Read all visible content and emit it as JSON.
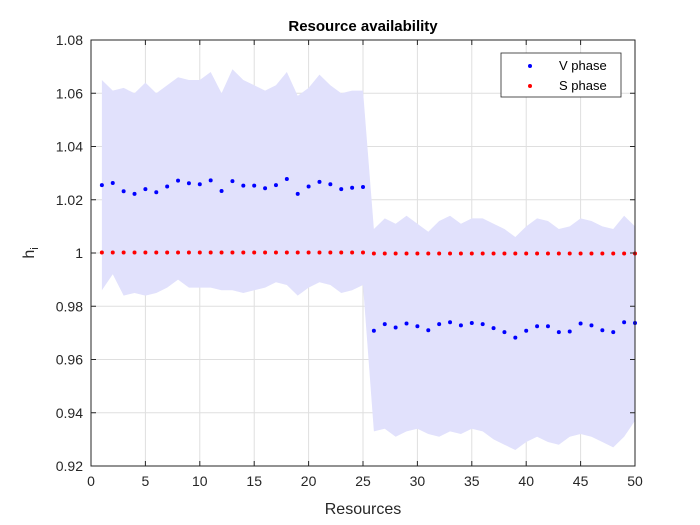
{
  "chart_data": {
    "type": "scatter",
    "title": "Resource availability",
    "xlabel": "Resources",
    "ylabel_main": "h",
    "ylabel_sub": "i",
    "xlim": [
      0,
      50
    ],
    "ylim": [
      0.92,
      1.08
    ],
    "xticks": [
      0,
      5,
      10,
      15,
      20,
      25,
      30,
      35,
      40,
      45,
      50
    ],
    "xtick_labels": [
      "0",
      "5",
      "10",
      "15",
      "20",
      "25",
      "30",
      "35",
      "40",
      "45",
      "50"
    ],
    "yticks": [
      0.92,
      0.94,
      0.96,
      0.98,
      1.0,
      1.02,
      1.04,
      1.06,
      1.08
    ],
    "ytick_labels": [
      "0.92",
      "0.94",
      "0.96",
      "0.98",
      "1",
      "1.02",
      "1.04",
      "1.06",
      "1.08"
    ],
    "grid": true,
    "legend_position": "top-right",
    "colors": {
      "v_phase": "#0000ff",
      "s_phase": "#ff0000",
      "band_fill": "#e1e1fc",
      "axis": "#262626",
      "grid": "#dfdfdf"
    },
    "x": [
      1,
      2,
      3,
      4,
      5,
      6,
      7,
      8,
      9,
      10,
      11,
      12,
      13,
      14,
      15,
      16,
      17,
      18,
      19,
      20,
      21,
      22,
      23,
      24,
      25,
      26,
      27,
      28,
      29,
      30,
      31,
      32,
      33,
      34,
      35,
      36,
      37,
      38,
      39,
      40,
      41,
      42,
      43,
      44,
      45,
      46,
      47,
      48,
      49,
      50
    ],
    "series": [
      {
        "name": "V phase",
        "values": [
          1.0255,
          1.0263,
          1.0232,
          1.0222,
          1.024,
          1.0228,
          1.025,
          1.0272,
          1.0262,
          1.0258,
          1.0273,
          1.0233,
          1.027,
          1.0253,
          1.0253,
          1.0243,
          1.0255,
          1.0278,
          1.0222,
          1.025,
          1.0267,
          1.0258,
          1.024,
          1.0245,
          1.0248,
          0.9708,
          0.9733,
          0.972,
          0.9735,
          0.9725,
          0.971,
          0.9733,
          0.974,
          0.9728,
          0.9737,
          0.9733,
          0.9718,
          0.9703,
          0.9682,
          0.9708,
          0.9725,
          0.9725,
          0.9703,
          0.9705,
          0.9735,
          0.9728,
          0.971,
          0.9703,
          0.974,
          0.9737
        ]
      },
      {
        "name": "S phase",
        "values": [
          1.0002,
          1.0002,
          1.0002,
          1.0002,
          1.0002,
          1.0002,
          1.0002,
          1.0002,
          1.0002,
          1.0002,
          1.0002,
          1.0002,
          1.0002,
          1.0002,
          1.0002,
          1.0002,
          1.0002,
          1.0002,
          1.0002,
          1.0002,
          1.0002,
          1.0002,
          1.0002,
          1.0002,
          1.0002,
          0.9998,
          0.9998,
          0.9998,
          0.9998,
          0.9998,
          0.9998,
          0.9998,
          0.9998,
          0.9998,
          0.9998,
          0.9998,
          0.9998,
          0.9998,
          0.9998,
          0.9998,
          0.9998,
          0.9998,
          0.9998,
          0.9998,
          0.9998,
          0.9998,
          0.9998,
          0.9998,
          0.9998,
          0.9998
        ]
      }
    ],
    "band": {
      "upper": [
        1.065,
        1.061,
        1.062,
        1.06,
        1.064,
        1.06,
        1.063,
        1.066,
        1.065,
        1.065,
        1.068,
        1.06,
        1.069,
        1.065,
        1.063,
        1.061,
        1.063,
        1.068,
        1.059,
        1.062,
        1.067,
        1.063,
        1.06,
        1.061,
        1.061,
        1.009,
        1.013,
        1.011,
        1.014,
        1.011,
        1.008,
        1.012,
        1.014,
        1.011,
        1.013,
        1.013,
        1.011,
        1.009,
        1.006,
        1.01,
        1.013,
        1.012,
        1.009,
        1.01,
        1.013,
        1.012,
        1.01,
        1.009,
        1.014,
        1.01
      ],
      "lower": [
        0.986,
        0.992,
        0.984,
        0.985,
        0.984,
        0.985,
        0.987,
        0.99,
        0.987,
        0.987,
        0.987,
        0.986,
        0.986,
        0.985,
        0.986,
        0.987,
        0.989,
        0.988,
        0.984,
        0.987,
        0.989,
        0.988,
        0.985,
        0.986,
        0.988,
        0.933,
        0.934,
        0.931,
        0.933,
        0.934,
        0.932,
        0.931,
        0.933,
        0.932,
        0.934,
        0.933,
        0.93,
        0.928,
        0.926,
        0.929,
        0.931,
        0.929,
        0.928,
        0.931,
        0.932,
        0.931,
        0.929,
        0.927,
        0.931,
        0.937
      ]
    }
  }
}
